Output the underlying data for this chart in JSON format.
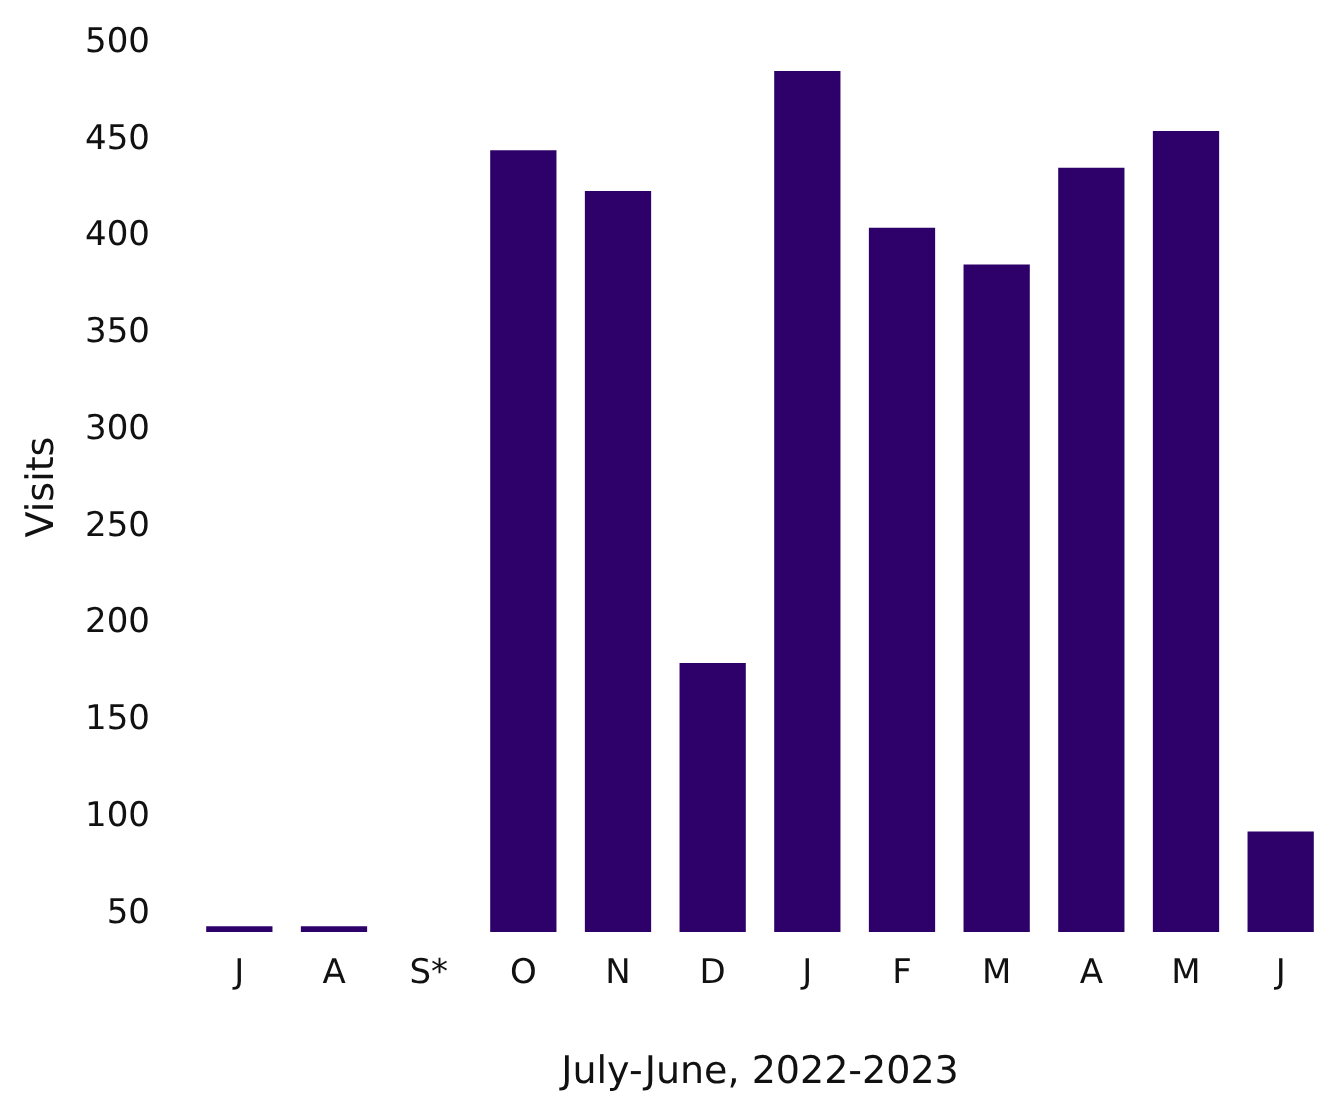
{
  "chart_data": {
    "type": "bar",
    "xlabel": "July-June, 2022-2023",
    "ylabel": "Visits",
    "categories": [
      "J",
      "A",
      "S*",
      "O",
      "N",
      "D",
      "J",
      "F",
      "M",
      "A",
      "M",
      "J"
    ],
    "values": [
      43,
      43,
      null,
      444,
      423,
      179,
      485,
      404,
      385,
      435,
      454,
      92
    ],
    "color": "#2e0069",
    "ylim": [
      40,
      500
    ],
    "yticks": [
      50,
      100,
      150,
      200,
      250,
      300,
      350,
      400,
      450,
      500
    ],
    "grid": false
  }
}
